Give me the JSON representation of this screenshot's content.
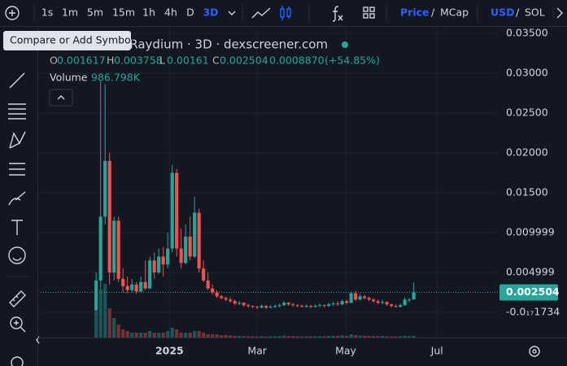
{
  "toolbar": {
    "intervals": [
      "1s",
      "1m",
      "5m",
      "15m",
      "1h",
      "4h",
      "D",
      "3D"
    ],
    "active_interval": 7,
    "price_modes": [
      "Price",
      "MCap"
    ],
    "currencies": [
      "USD",
      "SOL"
    ],
    "separator": "/"
  },
  "tooltip": "Compare or Add Symbol",
  "chart_data": {
    "type": "candlestick",
    "title": "n Raydium · 3D · dexscreener.com",
    "ohlc_letters": [
      "O",
      "H",
      "L",
      "C"
    ],
    "change": {
      "value": 0.000887,
      "label": "0.0008870"
    },
    "change_pct": {
      "value": 54.85,
      "label": "(+54.85%)"
    },
    "volume_title": "Volume",
    "up_color": "#26a69a",
    "down_color": "#ef5350",
    "ohlc": [
      [
        0.0003,
        0.005,
        0.0002,
        0.004
      ],
      [
        0.004,
        0.029,
        0.003,
        0.012
      ],
      [
        0.012,
        0.0286,
        0.011,
        0.019
      ],
      [
        0.019,
        0.02,
        0.0035,
        0.005
      ],
      [
        0.005,
        0.012,
        0.004,
        0.0115
      ],
      [
        0.0115,
        0.012,
        0.0038,
        0.0042
      ],
      [
        0.0042,
        0.0055,
        0.0025,
        0.0033
      ],
      [
        0.0033,
        0.0045,
        0.0024,
        0.0028
      ],
      [
        0.0028,
        0.0042,
        0.0025,
        0.0035
      ],
      [
        0.0035,
        0.0038,
        0.0023,
        0.0026
      ],
      [
        0.0026,
        0.0045,
        0.0025,
        0.0038
      ],
      [
        0.0038,
        0.0065,
        0.0028,
        0.003
      ],
      [
        0.003,
        0.007,
        0.0029,
        0.0065
      ],
      [
        0.0065,
        0.0075,
        0.0042,
        0.005
      ],
      [
        0.005,
        0.008,
        0.0048,
        0.007
      ],
      [
        0.007,
        0.0082,
        0.0045,
        0.006
      ],
      [
        0.006,
        0.01,
        0.0055,
        0.008
      ],
      [
        0.008,
        0.0185,
        0.0075,
        0.0175
      ],
      [
        0.0175,
        0.018,
        0.007,
        0.008
      ],
      [
        0.008,
        0.0105,
        0.0055,
        0.0062
      ],
      [
        0.0062,
        0.011,
        0.006,
        0.0095
      ],
      [
        0.0095,
        0.012,
        0.0065,
        0.007
      ],
      [
        0.007,
        0.0145,
        0.0068,
        0.0125
      ],
      [
        0.0125,
        0.013,
        0.005,
        0.0055
      ],
      [
        0.0055,
        0.0065,
        0.0038,
        0.004
      ],
      [
        0.004,
        0.005,
        0.0028,
        0.003
      ],
      [
        0.003,
        0.0035,
        0.0022,
        0.0025
      ],
      [
        0.0025,
        0.0028,
        0.0018,
        0.002
      ],
      [
        0.002,
        0.0022,
        0.0016,
        0.0018
      ],
      [
        0.0018,
        0.002,
        0.0014,
        0.0016
      ],
      [
        0.0016,
        0.0019,
        0.0012,
        0.0014
      ],
      [
        0.0014,
        0.0016,
        0.0009,
        0.0011
      ],
      [
        0.0011,
        0.0014,
        0.0009,
        0.0012
      ],
      [
        0.0012,
        0.0013,
        0.0007,
        0.0009
      ],
      [
        0.0009,
        0.0011,
        0.0006,
        0.0008
      ],
      [
        0.0008,
        0.0009,
        0.0005,
        0.0007
      ],
      [
        0.0007,
        0.0008,
        0.0004,
        0.0006
      ],
      [
        0.0006,
        0.001,
        0.0005,
        0.0008
      ],
      [
        0.0008,
        0.0009,
        0.0004,
        0.0006
      ],
      [
        0.0006,
        0.0009,
        0.0005,
        0.0007
      ],
      [
        0.0007,
        0.001,
        0.0005,
        0.0008
      ],
      [
        0.0008,
        0.0011,
        0.0006,
        0.0009
      ],
      [
        0.0009,
        0.0014,
        0.0008,
        0.0012
      ],
      [
        0.0012,
        0.0013,
        0.0008,
        0.001
      ],
      [
        0.001,
        0.0012,
        0.0007,
        0.0009
      ],
      [
        0.0009,
        0.001,
        0.0006,
        0.0008
      ],
      [
        0.0008,
        0.001,
        0.0006,
        0.0007
      ],
      [
        0.0007,
        0.001,
        0.0006,
        0.0008
      ],
      [
        0.0008,
        0.0009,
        0.0005,
        0.0007
      ],
      [
        0.0007,
        0.001,
        0.0006,
        0.0008
      ],
      [
        0.0008,
        0.0011,
        0.0007,
        0.0009
      ],
      [
        0.0009,
        0.001,
        0.0006,
        0.0008
      ],
      [
        0.0008,
        0.0012,
        0.0007,
        0.001
      ],
      [
        0.001,
        0.0013,
        0.0008,
        0.0011
      ],
      [
        0.0011,
        0.0014,
        0.0008,
        0.001
      ],
      [
        0.001,
        0.0016,
        0.0009,
        0.0014
      ],
      [
        0.0014,
        0.0016,
        0.001,
        0.0012
      ],
      [
        0.0012,
        0.0026,
        0.0011,
        0.0024
      ],
      [
        0.0024,
        0.0027,
        0.0014,
        0.0016
      ],
      [
        0.0016,
        0.0023,
        0.0015,
        0.002
      ],
      [
        0.002,
        0.0022,
        0.0016,
        0.0018
      ],
      [
        0.0018,
        0.002,
        0.0014,
        0.0016
      ],
      [
        0.0016,
        0.0018,
        0.0012,
        0.0014
      ],
      [
        0.0014,
        0.0016,
        0.001,
        0.0012
      ],
      [
        0.0012,
        0.0016,
        0.001,
        0.0013
      ],
      [
        0.0013,
        0.0014,
        0.0008,
        0.001
      ],
      [
        0.001,
        0.0011,
        0.0006,
        0.0008
      ],
      [
        0.0008,
        0.001,
        0.0006,
        0.0007
      ],
      [
        0.0007,
        0.0011,
        0.0006,
        0.0009
      ],
      [
        0.0009,
        0.0019,
        0.0008,
        0.0016
      ],
      [
        0.0016,
        0.0018,
        0.0013,
        0.0016
      ],
      [
        0.001617,
        0.003758,
        0.00161,
        0.002504
      ]
    ],
    "volume": [
      20000000,
      30000000,
      33000000,
      18000000,
      12000000,
      8000000,
      5000000,
      4000000,
      3000000,
      3000000,
      3000000,
      3000000,
      4000000,
      3000000,
      3000000,
      3000000,
      4000000,
      6000000,
      5000000,
      3000000,
      3000000,
      3000000,
      4000000,
      4000000,
      3000000,
      2000000,
      2000000,
      2000000,
      1500000,
      1500000,
      1200000,
      1000000,
      1000000,
      900000,
      800000,
      800000,
      700000,
      900000,
      700000,
      800000,
      800000,
      900000,
      1200000,
      1000000,
      900000,
      800000,
      700000,
      800000,
      700000,
      800000,
      900000,
      800000,
      1000000,
      1100000,
      1000000,
      1300000,
      1100000,
      2000000,
      1500000,
      1200000,
      1100000,
      1000000,
      900000,
      900000,
      1000000,
      800000,
      700000,
      700000,
      800000,
      1100000,
      900000,
      986798
    ],
    "volume_label": "986.798K",
    "xlim": [
      -12.4,
      89.8
    ],
    "xticks": [
      {
        "value": 16.4,
        "label": "2025"
      },
      {
        "value": 36.0,
        "label": "Mar"
      },
      {
        "value": 55.8,
        "label": "May"
      },
      {
        "value": 76.2,
        "label": "Jul"
      }
    ],
    "ylim": [
      -0.00316,
      0.03592
    ],
    "yticks": [
      {
        "value": 0.035,
        "label": "0.03500"
      },
      {
        "value": 0.03,
        "label": "0.03000"
      },
      {
        "value": 0.025,
        "label": "0.02500"
      },
      {
        "value": 0.02,
        "label": "0.02000"
      },
      {
        "value": 0.015,
        "label": "0.01500"
      },
      0.009999,
      0.004999,
      {
        "value": -1.734e-18,
        "label": "-0.0₁₇1734"
      }
    ],
    "grid": true
  }
}
